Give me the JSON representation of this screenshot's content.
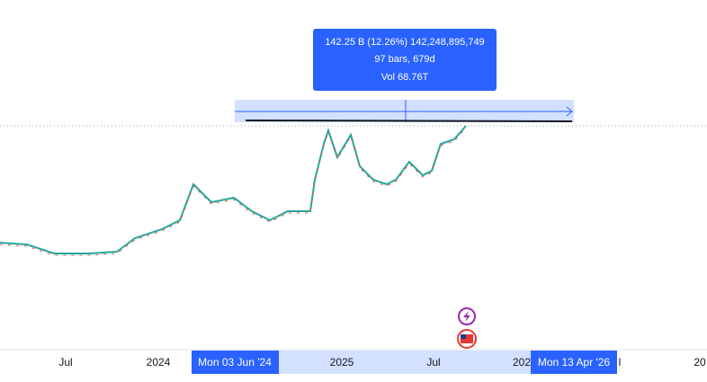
{
  "tooltip": {
    "change": "142.25 B (12.26%) 142,248,895,749",
    "bars": "97 bars, 679d",
    "volume": "Vol 68.76T"
  },
  "x_axis": {
    "labels": [
      "Jul",
      "2024",
      "2025",
      "Jul",
      "202",
      "l",
      "20"
    ]
  },
  "range_labels": {
    "start": "Mon 03 Jun '24",
    "end": "Mon 13 Apr '26"
  }
}
